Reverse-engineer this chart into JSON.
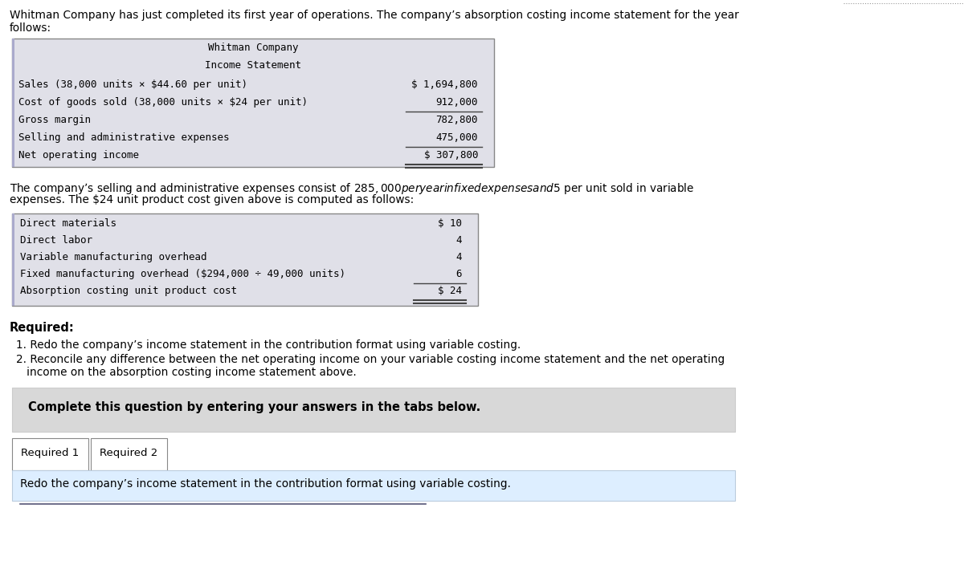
{
  "bg_color": "#ffffff",
  "top_text_line1": "Whitman Company has just completed its first year of operations. The company’s absorption costing income statement for the year",
  "top_text_line2": "follows:",
  "table1_header": [
    "Whitman Company",
    "Income Statement"
  ],
  "table1_rows": [
    [
      "Sales (38,000 units × $44.60 per unit)",
      "$ 1,694,800"
    ],
    [
      "Cost of goods sold (38,000 units × $24 per unit)",
      "912,000"
    ],
    [
      "Gross margin",
      "782,800"
    ],
    [
      "Selling and administrative expenses",
      "475,000"
    ],
    [
      "Net operating income",
      "$ 307,800"
    ]
  ],
  "table1_underline_rows": [
    1,
    3
  ],
  "table1_double_underline_rows": [
    4
  ],
  "middle_text_line1": "The company’s selling and administrative expenses consist of $285,000 per year in fixed expenses and $5 per unit sold in variable",
  "middle_text_line2": "expenses. The $24 unit product cost given above is computed as follows:",
  "table2_rows": [
    [
      "Direct materials",
      "$ 10"
    ],
    [
      "Direct labor",
      "4"
    ],
    [
      "Variable manufacturing overhead",
      "4"
    ],
    [
      "Fixed manufacturing overhead ($294,000 ÷ 49,000 units)",
      "6"
    ],
    [
      "Absorption costing unit product cost",
      "$ 24"
    ]
  ],
  "table2_underline_rows": [
    3
  ],
  "table2_double_underline_rows": [
    4
  ],
  "required_label": "Required:",
  "req1": "1. Redo the company’s income statement in the contribution format using variable costing.",
  "req2_line1": "2. Reconcile any difference between the net operating income on your variable costing income statement and the net operating",
  "req2_line2": "   income on the absorption costing income statement above.",
  "complete_box_text": "Complete this question by entering your answers in the tabs below.",
  "tab1_label": "Required 1",
  "tab2_label": "Required 2",
  "bottom_text": "Redo the company’s income statement in the contribution format using variable costing.",
  "dotted_line_color": "#999999",
  "table_bg": "#e0e0e8",
  "table_border": "#888888",
  "complete_box_bg": "#d8d8d8",
  "bottom_section_bg": "#ddeeff",
  "tab_bg": "#ffffff",
  "tab_border": "#888888",
  "left_border_color": "#aaaacc"
}
